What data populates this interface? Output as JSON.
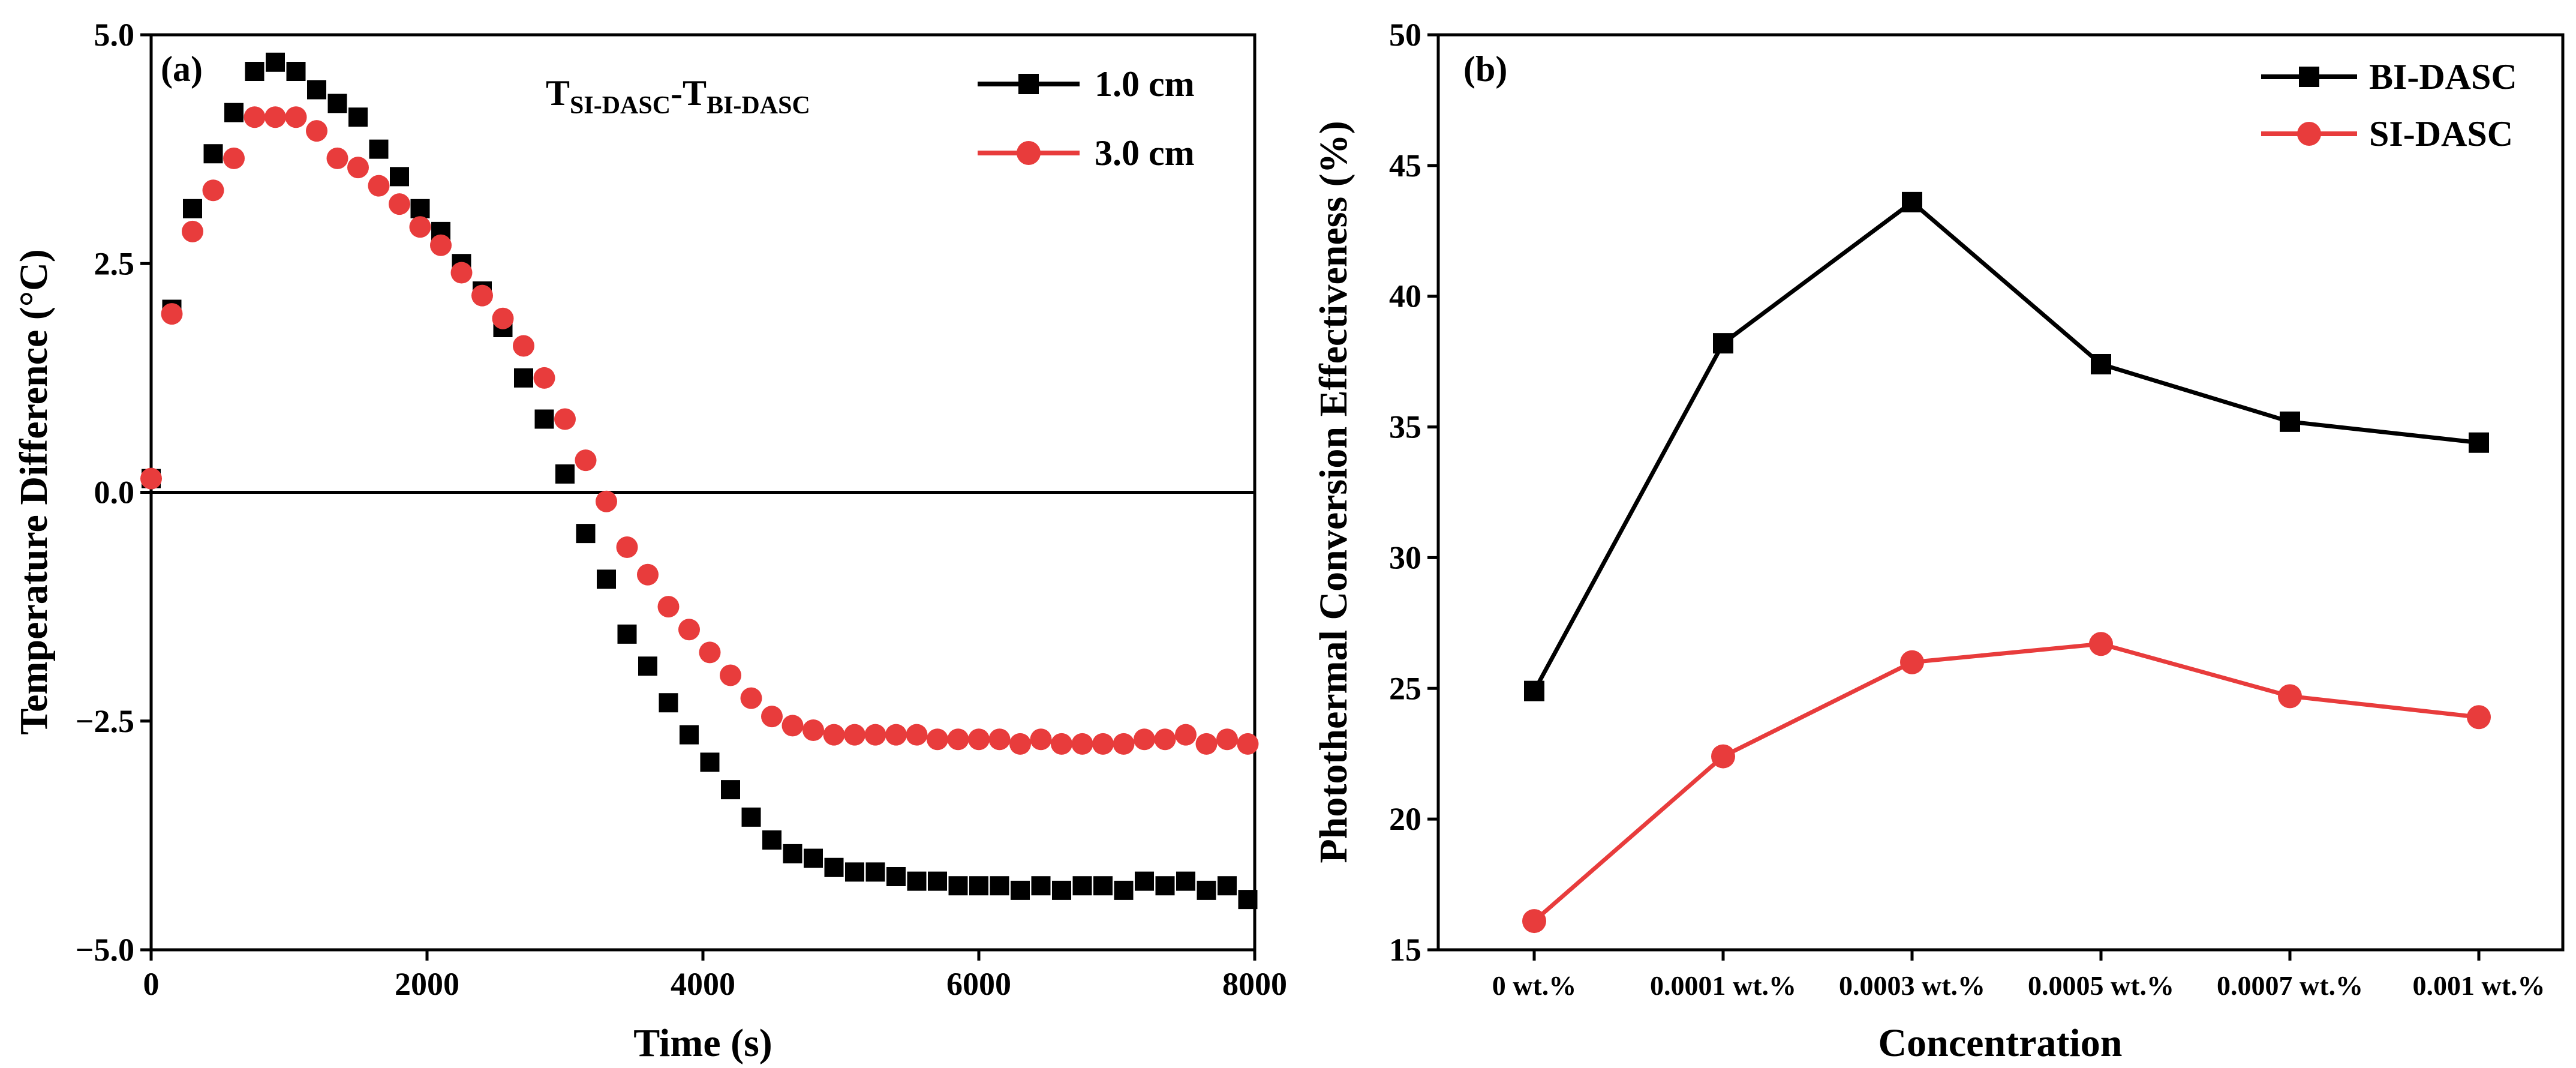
{
  "chart_data": [
    {
      "panel": "(a)",
      "type": "scatter",
      "title": "",
      "xlabel": "Time (s)",
      "ylabel": "Temperature Difference (°C)",
      "xlim": [
        0,
        8000
      ],
      "ylim": [
        -5.0,
        5.0
      ],
      "xticks": [
        0,
        2000,
        4000,
        6000,
        8000
      ],
      "yticks": [
        -5.0,
        -2.5,
        0.0,
        2.5,
        5.0
      ],
      "ytick_labels": [
        "−5.0",
        "−2.5",
        "0.0",
        "2.5",
        "5.0"
      ],
      "xtick_labels": [
        "0",
        "2000",
        "4000",
        "6000",
        "8000"
      ],
      "zero_line": true,
      "annotation": {
        "main": "T",
        "sub1": "SI-DASC",
        "dash": "-T",
        "sub2": "BI-DASC"
      },
      "legend_position": "top-right",
      "series": [
        {
          "name": "1.0 cm",
          "color": "#000000",
          "marker": "square",
          "x": [
            0,
            150,
            300,
            450,
            600,
            750,
            900,
            1050,
            1200,
            1350,
            1500,
            1650,
            1800,
            1950,
            2100,
            2250,
            2400,
            2550,
            2700,
            2850,
            3000,
            3150,
            3300,
            3450,
            3600,
            3750,
            3900,
            4050,
            4200,
            4350,
            4500,
            4650,
            4800,
            4950,
            5100,
            5250,
            5400,
            5550,
            5700,
            5850,
            6000,
            6150,
            6300,
            6450,
            6600,
            6750,
            6900,
            7050,
            7200,
            7350,
            7500,
            7650,
            7800,
            7950
          ],
          "y": [
            0.15,
            2.0,
            3.1,
            3.7,
            4.15,
            4.6,
            4.7,
            4.6,
            4.4,
            4.25,
            4.1,
            3.75,
            3.45,
            3.1,
            2.85,
            2.5,
            2.2,
            1.8,
            1.25,
            0.8,
            0.2,
            -0.45,
            -0.95,
            -1.55,
            -1.9,
            -2.3,
            -2.65,
            -2.95,
            -3.25,
            -3.55,
            -3.8,
            -3.95,
            -4.0,
            -4.1,
            -4.15,
            -4.15,
            -4.2,
            -4.25,
            -4.25,
            -4.3,
            -4.3,
            -4.3,
            -4.35,
            -4.3,
            -4.35,
            -4.3,
            -4.3,
            -4.35,
            -4.25,
            -4.3,
            -4.25,
            -4.35,
            -4.3,
            -4.45
          ]
        },
        {
          "name": "3.0 cm",
          "color": "#e83c3c",
          "marker": "circle",
          "x": [
            0,
            150,
            300,
            450,
            600,
            750,
            900,
            1050,
            1200,
            1350,
            1500,
            1650,
            1800,
            1950,
            2100,
            2250,
            2400,
            2550,
            2700,
            2850,
            3000,
            3150,
            3300,
            3450,
            3600,
            3750,
            3900,
            4050,
            4200,
            4350,
            4500,
            4650,
            4800,
            4950,
            5100,
            5250,
            5400,
            5550,
            5700,
            5850,
            6000,
            6150,
            6300,
            6450,
            6600,
            6750,
            6900,
            7050,
            7200,
            7350,
            7500,
            7650,
            7800,
            7950
          ],
          "y": [
            0.15,
            1.95,
            2.85,
            3.3,
            3.65,
            4.1,
            4.1,
            4.1,
            3.95,
            3.65,
            3.55,
            3.35,
            3.15,
            2.9,
            2.7,
            2.4,
            2.15,
            1.9,
            1.6,
            1.25,
            0.8,
            0.35,
            -0.1,
            -0.6,
            -0.9,
            -1.25,
            -1.5,
            -1.75,
            -2.0,
            -2.25,
            -2.45,
            -2.55,
            -2.6,
            -2.65,
            -2.65,
            -2.65,
            -2.65,
            -2.65,
            -2.7,
            -2.7,
            -2.7,
            -2.7,
            -2.75,
            -2.7,
            -2.75,
            -2.75,
            -2.75,
            -2.75,
            -2.7,
            -2.7,
            -2.65,
            -2.75,
            -2.7,
            -2.75
          ]
        }
      ]
    },
    {
      "panel": "(b)",
      "type": "line",
      "title": "",
      "xlabel": "Concentration",
      "ylabel": "Photothermal Conversion Effectiveness (%)",
      "categories": [
        "0 wt.%",
        "0.0001 wt.%",
        "0.0003 wt.%",
        "0.0005 wt.%",
        "0.0007 wt.%",
        "0.001 wt.%"
      ],
      "ylim": [
        15,
        50
      ],
      "yticks": [
        15,
        20,
        25,
        30,
        35,
        40,
        45,
        50
      ],
      "ytick_labels": [
        "15",
        "20",
        "25",
        "30",
        "35",
        "40",
        "45",
        "50"
      ],
      "legend_position": "top-right",
      "series": [
        {
          "name": "BI-DASC",
          "color": "#000000",
          "marker": "square",
          "values": [
            24.9,
            38.2,
            43.6,
            37.4,
            35.2,
            34.4
          ]
        },
        {
          "name": "SI-DASC",
          "color": "#e83c3c",
          "marker": "circle",
          "values": [
            16.1,
            22.4,
            26.0,
            26.7,
            24.7,
            23.9
          ]
        }
      ]
    }
  ]
}
